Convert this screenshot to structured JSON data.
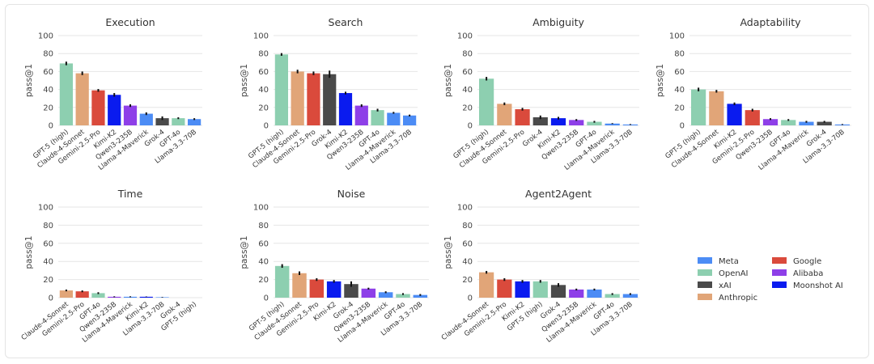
{
  "palette": {
    "Meta": "#4C8CF5",
    "OpenAI": "#8DCFB0",
    "xAI": "#4A4A4A",
    "Anthropic": "#E1A578",
    "Google": "#DA4A3C",
    "Alibaba": "#8E3FE8",
    "Moonshot AI": "#0A1BEF"
  },
  "legend": {
    "items": [
      {
        "label": "Meta",
        "color": "#4C8CF5"
      },
      {
        "label": "OpenAI",
        "color": "#8DCFB0"
      },
      {
        "label": "xAI",
        "color": "#4A4A4A"
      },
      {
        "label": "Anthropic",
        "color": "#E1A578"
      },
      {
        "label": "Google",
        "color": "#DA4A3C"
      },
      {
        "label": "Alibaba",
        "color": "#8E3FE8"
      },
      {
        "label": "Moonshot AI",
        "color": "#0A1BEF"
      }
    ]
  },
  "chart_data": [
    {
      "type": "bar",
      "title": "Execution",
      "ylabel": "pass@1",
      "ylim": [
        0,
        100
      ],
      "yticks": [
        0,
        20,
        40,
        60,
        80,
        100
      ],
      "categories": [
        "GPT-5 (high)",
        "Claude-4-Sonnet",
        "Gemini-2.5-Pro",
        "Kimi-K2",
        "Qwen3-235B",
        "Llama-4-Maverick",
        "Grok-4",
        "GPT-4o",
        "Llama-3.3-70B"
      ],
      "providers": [
        "OpenAI",
        "Anthropic",
        "Google",
        "Moonshot AI",
        "Alibaba",
        "Meta",
        "xAI",
        "OpenAI",
        "Meta"
      ],
      "values": [
        69,
        58,
        39,
        34,
        22,
        13,
        8,
        8,
        7
      ],
      "errors": [
        2,
        2,
        1.5,
        2,
        1.5,
        1.5,
        2,
        1,
        1
      ]
    },
    {
      "type": "bar",
      "title": "Search",
      "ylabel": "pass@1",
      "ylim": [
        0,
        100
      ],
      "yticks": [
        0,
        20,
        40,
        60,
        80,
        100
      ],
      "categories": [
        "GPT-5 (high)",
        "Claude-4-Sonnet",
        "Gemini-2.5-Pro",
        "Grok-4",
        "Kimi-K2",
        "Qwen3-235B",
        "GPT-4o",
        "Llama-4-Maverick",
        "Llama-3.3-70B"
      ],
      "providers": [
        "OpenAI",
        "Anthropic",
        "Google",
        "xAI",
        "Moonshot AI",
        "Alibaba",
        "OpenAI",
        "Meta",
        "Meta"
      ],
      "values": [
        79,
        60,
        58,
        57,
        36,
        22,
        17,
        14,
        11
      ],
      "errors": [
        1.5,
        2,
        2,
        4,
        1.5,
        1.5,
        1.5,
        1,
        1
      ]
    },
    {
      "type": "bar",
      "title": "Ambiguity",
      "ylabel": "pass@1",
      "ylim": [
        0,
        100
      ],
      "yticks": [
        0,
        20,
        40,
        60,
        80,
        100
      ],
      "categories": [
        "GPT-5 (high)",
        "Claude-4-Sonnet",
        "Gemini-2.5-Pro",
        "Grok-4",
        "Kimi-K2",
        "Qwen3-235B",
        "GPT-4o",
        "Llama-4-Maverick",
        "Llama-3.3-70B"
      ],
      "providers": [
        "OpenAI",
        "Anthropic",
        "Google",
        "xAI",
        "Moonshot AI",
        "Alibaba",
        "OpenAI",
        "Meta",
        "Meta"
      ],
      "values": [
        52,
        24,
        18,
        9,
        8,
        6,
        4,
        2,
        1
      ],
      "errors": [
        2,
        1.5,
        1.5,
        2,
        1.5,
        1,
        1,
        0.5,
        0.5
      ]
    },
    {
      "type": "bar",
      "title": "Adaptability",
      "ylabel": "pass@1",
      "ylim": [
        0,
        100
      ],
      "yticks": [
        0,
        20,
        40,
        60,
        80,
        100
      ],
      "categories": [
        "GPT-5 (high)",
        "Claude-4-Sonnet",
        "Kimi-K2",
        "Gemini-2.5-Pro",
        "Qwen3-235B",
        "GPT-4o",
        "Llama-4-Maverick",
        "Grok-4",
        "Llama-3.3-70B"
      ],
      "providers": [
        "OpenAI",
        "Anthropic",
        "Moonshot AI",
        "Google",
        "Alibaba",
        "OpenAI",
        "Meta",
        "xAI",
        "Meta"
      ],
      "values": [
        40,
        38,
        24,
        17,
        7,
        6,
        4,
        4,
        1
      ],
      "errors": [
        2,
        1.5,
        1.5,
        1.5,
        1,
        1,
        1,
        1,
        0.5
      ]
    },
    {
      "type": "bar",
      "title": "Time",
      "ylabel": "pass@1",
      "ylim": [
        0,
        100
      ],
      "yticks": [
        0,
        20,
        40,
        60,
        80,
        100
      ],
      "categories": [
        "Claude-4-Sonnet",
        "Gemini-2.5-Pro",
        "GPT-4o",
        "Qwen3-235B",
        "Llama-4-Maverick",
        "Kimi-K2",
        "Llama-3.3-70B",
        "Grok-4",
        "GPT-5 (high)"
      ],
      "providers": [
        "Anthropic",
        "Google",
        "OpenAI",
        "Alibaba",
        "Meta",
        "Moonshot AI",
        "Meta",
        "xAI",
        "OpenAI"
      ],
      "values": [
        8,
        7,
        5,
        1,
        1,
        1,
        0.5,
        0,
        0
      ],
      "errors": [
        1,
        1,
        1,
        0.5,
        0.5,
        0.3,
        0.3,
        0,
        0
      ]
    },
    {
      "type": "bar",
      "title": "Noise",
      "ylabel": "pass@1",
      "ylim": [
        0,
        100
      ],
      "yticks": [
        0,
        20,
        40,
        60,
        80,
        100
      ],
      "categories": [
        "GPT-5 (high)",
        "Claude-4-Sonnet",
        "Gemini-2.5-Pro",
        "Kimi-K2",
        "Grok-4",
        "Qwen3-235B",
        "Llama-4-Maverick",
        "GPT-4o",
        "Llama-3.3-70B"
      ],
      "providers": [
        "OpenAI",
        "Anthropic",
        "Google",
        "Moonshot AI",
        "xAI",
        "Alibaba",
        "Meta",
        "OpenAI",
        "Meta"
      ],
      "values": [
        35,
        27,
        20,
        18,
        15,
        10,
        6,
        4,
        3
      ],
      "errors": [
        2,
        2,
        1.5,
        1.5,
        3,
        1,
        1,
        1,
        1
      ]
    },
    {
      "type": "bar",
      "title": "Agent2Agent",
      "ylabel": "pass@1",
      "ylim": [
        0,
        100
      ],
      "yticks": [
        0,
        20,
        40,
        60,
        80,
        100
      ],
      "categories": [
        "Claude-4-Sonnet",
        "Gemini-2.5-Pro",
        "Kimi-K2",
        "GPT-5 (high)",
        "Grok-4",
        "Qwen3-235B",
        "Llama-4-Maverick",
        "GPT-4o",
        "Llama-3.3-70B"
      ],
      "providers": [
        "Anthropic",
        "Google",
        "Moonshot AI",
        "OpenAI",
        "xAI",
        "Alibaba",
        "Meta",
        "OpenAI",
        "Meta"
      ],
      "values": [
        28,
        20,
        18,
        18,
        14,
        9,
        9,
        4,
        4
      ],
      "errors": [
        1.5,
        1.5,
        1.5,
        1.5,
        2,
        1,
        1,
        1,
        1
      ]
    }
  ]
}
